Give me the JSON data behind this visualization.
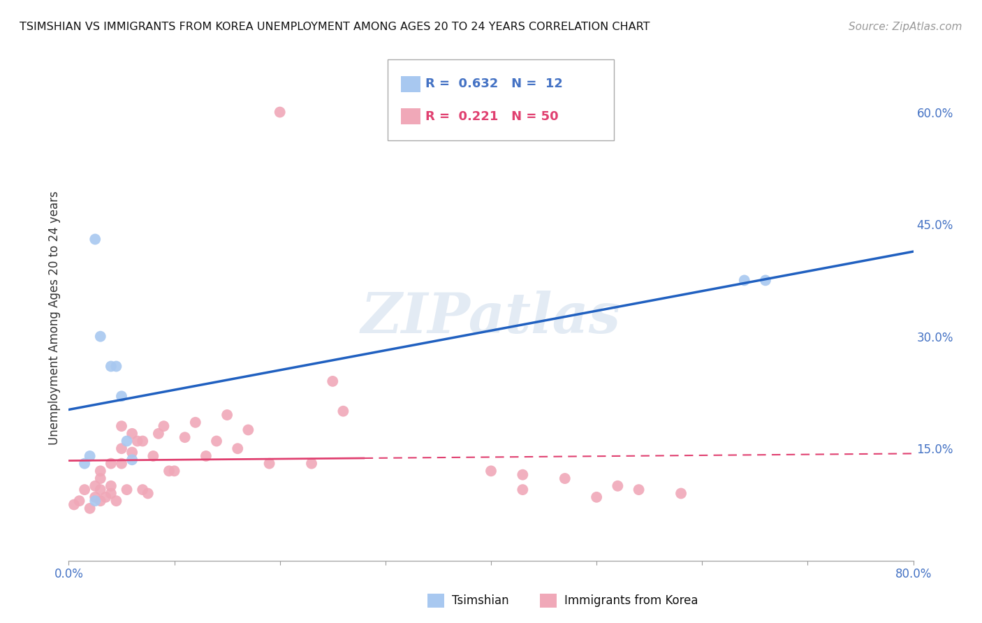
{
  "title": "TSIMSHIAN VS IMMIGRANTS FROM KOREA UNEMPLOYMENT AMONG AGES 20 TO 24 YEARS CORRELATION CHART",
  "source": "Source: ZipAtlas.com",
  "ylabel": "Unemployment Among Ages 20 to 24 years",
  "xlim": [
    0.0,
    0.8
  ],
  "ylim": [
    0.0,
    0.65
  ],
  "y_ticks_right": [
    0.15,
    0.3,
    0.45,
    0.6
  ],
  "y_tick_labels_right": [
    "15.0%",
    "30.0%",
    "45.0%",
    "60.0%"
  ],
  "tsimshian_color": "#a8c8f0",
  "korea_color": "#f0a8b8",
  "tsimshian_line_color": "#2060c0",
  "korea_line_color": "#e04070",
  "watermark": "ZIPatlas",
  "tsimshian_x": [
    0.015,
    0.02,
    0.025,
    0.03,
    0.04,
    0.045,
    0.05,
    0.055,
    0.06,
    0.64,
    0.66,
    0.025
  ],
  "tsimshian_y": [
    0.13,
    0.14,
    0.43,
    0.3,
    0.26,
    0.26,
    0.22,
    0.16,
    0.135,
    0.375,
    0.375,
    0.08
  ],
  "korea_x": [
    0.005,
    0.01,
    0.015,
    0.02,
    0.025,
    0.025,
    0.03,
    0.03,
    0.03,
    0.03,
    0.035,
    0.04,
    0.04,
    0.04,
    0.045,
    0.05,
    0.05,
    0.05,
    0.055,
    0.06,
    0.06,
    0.065,
    0.07,
    0.07,
    0.075,
    0.08,
    0.085,
    0.09,
    0.095,
    0.1,
    0.11,
    0.12,
    0.13,
    0.14,
    0.15,
    0.16,
    0.17,
    0.19,
    0.2,
    0.23,
    0.25,
    0.26,
    0.4,
    0.43,
    0.43,
    0.47,
    0.5,
    0.52,
    0.54,
    0.58
  ],
  "korea_y": [
    0.075,
    0.08,
    0.095,
    0.07,
    0.085,
    0.1,
    0.08,
    0.095,
    0.11,
    0.12,
    0.085,
    0.09,
    0.1,
    0.13,
    0.08,
    0.13,
    0.15,
    0.18,
    0.095,
    0.145,
    0.17,
    0.16,
    0.095,
    0.16,
    0.09,
    0.14,
    0.17,
    0.18,
    0.12,
    0.12,
    0.165,
    0.185,
    0.14,
    0.16,
    0.195,
    0.15,
    0.175,
    0.13,
    0.6,
    0.13,
    0.24,
    0.2,
    0.12,
    0.095,
    0.115,
    0.11,
    0.085,
    0.1,
    0.095,
    0.09
  ],
  "background_color": "#ffffff",
  "grid_color": "#cccccc",
  "title_fontsize": 11.5,
  "source_fontsize": 11,
  "tick_fontsize": 12,
  "ylabel_fontsize": 12
}
